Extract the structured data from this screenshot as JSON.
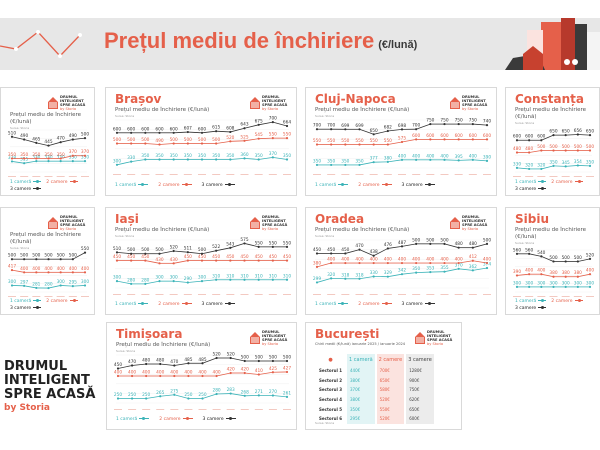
{
  "header": {
    "title": "Prețul mediu de închiriere",
    "unit": "(€/lună)"
  },
  "brand": {
    "lines": [
      "DRUMUL",
      "INTELIGENT",
      "SPRE ACASĂ"
    ],
    "by": "by Storia"
  },
  "colors": {
    "accent": "#e5604a",
    "one_room": "#3bb3b8",
    "two_rooms": "#e5604a",
    "three_rooms": "#333333",
    "band": "#e7e7e7"
  },
  "card_common": {
    "subtitle": "Prețul mediu de închiriere (€/lună)",
    "source": "Sursa: Storia",
    "logo_text": "DRUMUL INTELIGENT SPRE ACASĂ",
    "logo_by": "by Storia",
    "legend": [
      "1 cameră",
      "2 camere",
      "3 camere"
    ]
  },
  "chart_data": [
    {
      "type": "line",
      "title": "",
      "ylim": [
        250,
        560
      ],
      "series": [
        {
          "name": "1 cameră",
          "values": [
            null,
            null,
            null,
            null,
            null,
            null,
            328,
            315,
            330,
            330,
            330,
            330,
            330
          ]
        },
        {
          "name": "2 camere",
          "values": [
            null,
            null,
            null,
            null,
            null,
            null,
            350,
            350,
            350,
            350,
            350,
            370,
            370
          ]
        },
        {
          "name": "3 camere",
          "values": [
            null,
            null,
            null,
            null,
            null,
            null,
            510,
            490,
            465,
            445,
            470,
            490,
            500
          ]
        }
      ]
    },
    {
      "type": "line",
      "title": "Brașov",
      "ylim": [
        270,
        720
      ],
      "series": [
        {
          "name": "1 cameră",
          "values": [
            300,
            330,
            350,
            350,
            350,
            350,
            350,
            350,
            350,
            360,
            350,
            370,
            350
          ]
        },
        {
          "name": "2 camere",
          "values": [
            500,
            500,
            500,
            490,
            500,
            500,
            500,
            500,
            520,
            525,
            545,
            550,
            550
          ]
        },
        {
          "name": "3 camere",
          "values": [
            600,
            600,
            600,
            600,
            600,
            607,
            600,
            615,
            608,
            643,
            675,
            700,
            664
          ]
        }
      ]
    },
    {
      "type": "line",
      "title": "Cluj-Napoca",
      "ylim": [
        320,
        790
      ],
      "series": [
        {
          "name": "1 cameră",
          "values": [
            350,
            350,
            350,
            350,
            377,
            380,
            400,
            400,
            400,
            400,
            395,
            400,
            390
          ]
        },
        {
          "name": "2 camere",
          "values": [
            550,
            550,
            550,
            550,
            550,
            550,
            575,
            600,
            600,
            600,
            600,
            600,
            600
          ]
        },
        {
          "name": "3 camere",
          "values": [
            700,
            700,
            699,
            699,
            650,
            682,
            698,
            700,
            750,
            750,
            750,
            750,
            740
          ]
        }
      ]
    },
    {
      "type": "line",
      "title": "Constanța",
      "ylim": [
        290,
        700
      ],
      "series": [
        {
          "name": "1 cameră",
          "values": [
            330,
            320,
            320,
            350,
            345,
            354,
            350,
            null,
            null,
            null,
            null,
            null,
            null
          ]
        },
        {
          "name": "2 camere",
          "values": [
            480,
            480,
            500,
            500,
            500,
            500,
            500,
            null,
            null,
            null,
            null,
            null,
            null
          ]
        },
        {
          "name": "3 camere",
          "values": [
            600,
            600,
            600,
            650,
            650,
            656,
            650,
            null,
            null,
            null,
            null,
            null,
            null
          ]
        }
      ]
    },
    {
      "type": "line",
      "title": "",
      "ylim": [
        250,
        570
      ],
      "series": [
        {
          "name": "1 cameră",
          "values": [
            null,
            null,
            null,
            null,
            null,
            null,
            300,
            297,
            281,
            280,
            300,
            295,
            300
          ]
        },
        {
          "name": "2 camere",
          "values": [
            null,
            null,
            null,
            null,
            null,
            null,
            417,
            400,
            400,
            400,
            400,
            400,
            400
          ]
        },
        {
          "name": "3 camere",
          "values": [
            null,
            null,
            null,
            null,
            null,
            null,
            500,
            500,
            500,
            500,
            500,
            500,
            550
          ]
        }
      ]
    },
    {
      "type": "line",
      "title": "Iași",
      "ylim": [
        250,
        600
      ],
      "series": [
        {
          "name": "1 cameră",
          "values": [
            300,
            280,
            280,
            300,
            300,
            290,
            300,
            310,
            310,
            310,
            310,
            310,
            310
          ]
        },
        {
          "name": "2 camere",
          "values": [
            450,
            450,
            450,
            430,
            430,
            450,
            450,
            450,
            450,
            450,
            450,
            450,
            450
          ]
        },
        {
          "name": "3 camere",
          "values": [
            510,
            500,
            500,
            500,
            520,
            511,
            500,
            522,
            543,
            575,
            550,
            550,
            550
          ]
        }
      ]
    },
    {
      "type": "line",
      "title": "Oradea",
      "ylim": [
        270,
        520
      ],
      "series": [
        {
          "name": "1 cameră",
          "values": [
            299,
            320,
            318,
            318,
            330,
            329,
            342,
            350,
            353,
            355,
            370,
            362,
            374
          ]
        },
        {
          "name": "2 camere",
          "values": [
            380,
            400,
            400,
            400,
            400,
            400,
            400,
            400,
            400,
            400,
            400,
            412,
            400
          ]
        },
        {
          "name": "3 camere",
          "values": [
            450,
            450,
            450,
            470,
            438,
            476,
            487,
            500,
            500,
            500,
            480,
            480,
            500
          ]
        }
      ]
    },
    {
      "type": "line",
      "title": "Sibiu",
      "ylim": [
        260,
        590
      ],
      "series": [
        {
          "name": "1 cameră",
          "values": [
            300,
            300,
            300,
            300,
            300,
            300,
            300,
            null,
            null,
            null,
            null,
            null,
            null
          ]
        },
        {
          "name": "2 camere",
          "values": [
            390,
            400,
            400,
            380,
            380,
            380,
            400,
            null,
            null,
            null,
            null,
            null,
            null
          ]
        },
        {
          "name": "3 camere",
          "values": [
            560,
            560,
            540,
            500,
            500,
            500,
            520,
            null,
            null,
            null,
            null,
            null,
            null
          ]
        }
      ]
    },
    {
      "type": "line",
      "title": "Timișoara",
      "ylim": [
        220,
        540
      ],
      "series": [
        {
          "name": "1 cameră",
          "values": [
            250,
            250,
            250,
            265,
            275,
            250,
            250,
            280,
            283,
            268,
            271,
            270,
            261
          ]
        },
        {
          "name": "2 camere",
          "values": [
            400,
            400,
            400,
            400,
            400,
            400,
            400,
            400,
            420,
            420,
            410,
            425,
            427
          ]
        },
        {
          "name": "3 camere",
          "values": [
            450,
            470,
            480,
            480,
            470,
            485,
            485,
            520,
            520,
            500,
            500,
            500,
            500
          ]
        }
      ]
    }
  ],
  "bucuresti": {
    "title": "București",
    "subtitle": "Chirii medii (€/lună) ianuarie 2025 / ianuarie 2024",
    "source": "Sursa: Storia",
    "columns": [
      "1 cameră",
      "2 camere",
      "3 camere"
    ],
    "rows": [
      {
        "label": "Sectorul 1",
        "values": [
          "440€",
          "700€",
          "1280€"
        ]
      },
      {
        "label": "Sectorul 2",
        "values": [
          "380€",
          "650€",
          "900€"
        ]
      },
      {
        "label": "Sectorul 3",
        "values": [
          "370€",
          "580€",
          "750€"
        ]
      },
      {
        "label": "Sectorul 4",
        "values": [
          "380€",
          "520€",
          "620€"
        ]
      },
      {
        "label": "Sectorul 5",
        "values": [
          "350€",
          "550€",
          "650€"
        ]
      },
      {
        "label": "Sectorul 6",
        "values": [
          "295€",
          "520€",
          "600€"
        ]
      }
    ]
  }
}
